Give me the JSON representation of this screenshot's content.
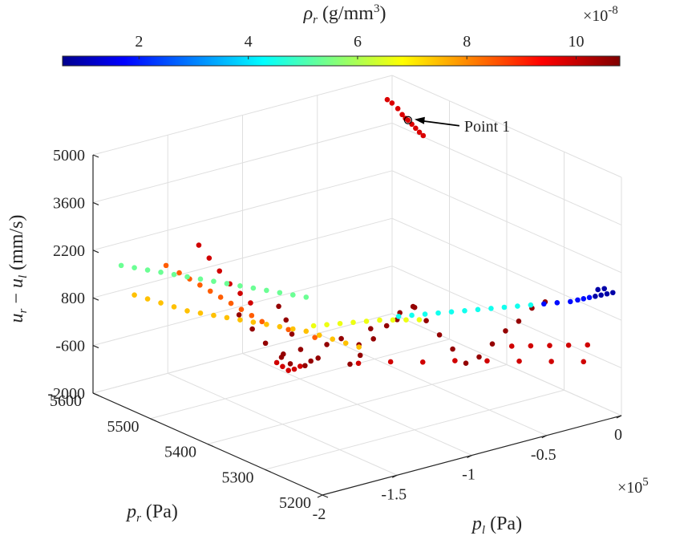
{
  "chart_data": {
    "type": "scatter",
    "subtype": "3d-scatter",
    "colormap": "jet",
    "grid": true,
    "axes": {
      "x": {
        "label": "p_l (Pa)",
        "lim": [
          -2,
          0
        ],
        "ticks": [
          "-2",
          "-1.5",
          "-1",
          "-0.5",
          "0"
        ],
        "exponent": "×10^5"
      },
      "y": {
        "label": "p_r (Pa)",
        "lim": [
          5200,
          5600
        ],
        "ticks": [
          "5200",
          "5300",
          "5400",
          "5500",
          "5600"
        ]
      },
      "z": {
        "label": "u_r − u_l (mm/s)",
        "lim": [
          -2000,
          5000
        ],
        "ticks": [
          "-2000",
          "-600",
          "800",
          "2200",
          "3600",
          "5000"
        ]
      }
    },
    "colorbar": {
      "label": "ρ_r (g/mm³)",
      "location": "top",
      "ticks": [
        "2",
        "4",
        "6",
        "8",
        "10"
      ],
      "exponent": "×10^-8",
      "range": [
        0.6,
        10.8
      ]
    },
    "annotation": {
      "text": "Point 1",
      "point": [
        0.03,
        5580,
        3800
      ]
    },
    "series": [
      {
        "rho": 10.6,
        "points": [
          [
            -0.85,
            5520,
            -1800
          ],
          [
            -0.88,
            5530,
            -1500
          ],
          [
            -0.9,
            5540,
            -1100
          ],
          [
            -0.92,
            5545,
            -700
          ],
          [
            -0.95,
            5550,
            -300
          ],
          [
            -0.82,
            5500,
            -1200
          ],
          [
            -0.8,
            5480,
            -900
          ],
          [
            -0.78,
            5470,
            -1600
          ],
          [
            -0.75,
            5460,
            -1300
          ],
          [
            -0.7,
            5450,
            -800
          ],
          [
            -0.65,
            5440,
            -400
          ],
          [
            -0.6,
            5430,
            0
          ],
          [
            -0.55,
            5420,
            200
          ],
          [
            -0.5,
            5410,
            -200
          ],
          [
            -0.45,
            5400,
            -600
          ],
          [
            -0.4,
            5390,
            -1000
          ],
          [
            -0.35,
            5380,
            -1400
          ],
          [
            -0.3,
            5370,
            -1200
          ],
          [
            -0.25,
            5360,
            -800
          ],
          [
            -0.2,
            5350,
            -400
          ],
          [
            -0.15,
            5340,
            -100
          ],
          [
            -0.1,
            5330,
            300
          ],
          [
            -0.05,
            5320,
            500
          ],
          [
            -1.0,
            5560,
            -1400
          ],
          [
            -1.05,
            5570,
            -1000
          ],
          [
            -1.1,
            5580,
            -600
          ],
          [
            -0.97,
            5540,
            -1700
          ],
          [
            -0.93,
            5535,
            -1900
          ],
          [
            -0.87,
            5525,
            -1950
          ],
          [
            -0.9,
            5555,
            -1800
          ],
          [
            -0.84,
            5510,
            -1650
          ],
          [
            -0.72,
            5470,
            -1100
          ],
          [
            -0.68,
            5460,
            -600
          ],
          [
            -0.58,
            5440,
            -300
          ],
          [
            -0.52,
            5425,
            100
          ]
        ]
      },
      {
        "rho": 10.0,
        "points": [
          [
            -1.0,
            5520,
            -1900
          ],
          [
            -1.02,
            5525,
            -1800
          ],
          [
            -1.04,
            5530,
            -1700
          ],
          [
            -0.98,
            5515,
            -1850
          ],
          [
            -0.96,
            5510,
            -1750
          ],
          [
            -0.8,
            5450,
            -1400
          ],
          [
            -0.7,
            5420,
            -1250
          ],
          [
            -0.6,
            5390,
            -1150
          ],
          [
            -0.5,
            5360,
            -1000
          ],
          [
            -0.4,
            5330,
            -900
          ],
          [
            -0.3,
            5300,
            -800
          ],
          [
            -0.2,
            5270,
            -700
          ],
          [
            -0.1,
            5240,
            -600
          ],
          [
            -1.2,
            5570,
            500
          ],
          [
            -1.25,
            5575,
            900
          ],
          [
            -1.3,
            5580,
            1300
          ],
          [
            -1.35,
            5585,
            1700
          ],
          [
            -1.15,
            5565,
            200
          ],
          [
            -1.1,
            5560,
            -100
          ],
          [
            -0.35,
            5300,
            -300
          ],
          [
            -0.3,
            5280,
            -200
          ],
          [
            -0.25,
            5260,
            -100
          ],
          [
            -0.2,
            5240,
            0
          ],
          [
            -0.15,
            5220,
            100
          ]
        ]
      },
      {
        "rho": 9.9,
        "points": [
          [
            0.0,
            5590,
            4100
          ],
          [
            0.01,
            5585,
            3950
          ],
          [
            0.02,
            5582,
            3850
          ],
          [
            0.03,
            5580,
            3800
          ],
          [
            0.04,
            5576,
            3700
          ],
          [
            0.05,
            5572,
            3600
          ],
          [
            0.06,
            5568,
            3500
          ],
          [
            0.07,
            5564,
            3420
          ],
          [
            -0.02,
            5595,
            4250
          ],
          [
            -0.04,
            5598,
            4350
          ]
        ]
      },
      {
        "rho": 8.6,
        "points": [
          [
            -1.3,
            5560,
            300
          ],
          [
            -1.35,
            5565,
            500
          ],
          [
            -1.4,
            5570,
            700
          ],
          [
            -1.45,
            5575,
            900
          ],
          [
            -1.25,
            5555,
            100
          ],
          [
            -1.2,
            5550,
            -100
          ],
          [
            -1.15,
            5545,
            -300
          ],
          [
            -1.1,
            5540,
            -500
          ],
          [
            -1.0,
            5520,
            -700
          ],
          [
            -0.9,
            5500,
            -900
          ],
          [
            -1.5,
            5580,
            1100
          ],
          [
            -1.55,
            5590,
            1300
          ]
        ]
      },
      {
        "rho": 7.6,
        "points": [
          [
            -1.6,
            5540,
            400
          ],
          [
            -1.55,
            5530,
            350
          ],
          [
            -1.5,
            5520,
            300
          ],
          [
            -1.45,
            5510,
            250
          ],
          [
            -1.4,
            5500,
            200
          ],
          [
            -1.35,
            5490,
            150
          ],
          [
            -1.3,
            5480,
            100
          ],
          [
            -1.25,
            5470,
            50
          ],
          [
            -1.2,
            5460,
            0
          ],
          [
            -1.15,
            5450,
            -50
          ],
          [
            -1.65,
            5550,
            500
          ],
          [
            -1.7,
            5560,
            600
          ],
          [
            -1.75,
            5570,
            700
          ],
          [
            -1.8,
            5580,
            800
          ],
          [
            -1.1,
            5440,
            -150
          ],
          [
            -1.05,
            5430,
            -250
          ],
          [
            -1.0,
            5420,
            -350
          ],
          [
            -0.95,
            5410,
            -450
          ]
        ]
      },
      {
        "rho": 6.8,
        "points": [
          [
            -1.0,
            5430,
            150
          ],
          [
            -0.95,
            5420,
            200
          ],
          [
            -0.9,
            5410,
            250
          ],
          [
            -0.85,
            5400,
            300
          ],
          [
            -0.8,
            5390,
            320
          ],
          [
            -0.75,
            5380,
            340
          ],
          [
            -1.05,
            5440,
            100
          ],
          [
            -1.1,
            5450,
            50
          ],
          [
            -0.7,
            5370,
            360
          ]
        ]
      },
      {
        "rho": 5.5,
        "points": [
          [
            -1.7,
            5560,
            1500
          ],
          [
            -1.65,
            5550,
            1450
          ],
          [
            -1.6,
            5540,
            1400
          ],
          [
            -1.55,
            5530,
            1350
          ],
          [
            -1.5,
            5520,
            1300
          ],
          [
            -1.45,
            5510,
            1250
          ],
          [
            -1.4,
            5500,
            1200
          ],
          [
            -1.35,
            5490,
            1150
          ],
          [
            -1.3,
            5480,
            1100
          ],
          [
            -1.25,
            5470,
            1050
          ],
          [
            -1.2,
            5460,
            1000
          ],
          [
            -1.15,
            5450,
            950
          ],
          [
            -1.75,
            5570,
            1550
          ],
          [
            -1.8,
            5580,
            1600
          ],
          [
            -1.85,
            5590,
            1650
          ]
        ]
      },
      {
        "rho": 4.6,
        "points": [
          [
            -0.7,
            5360,
            600
          ],
          [
            -0.65,
            5350,
            650
          ],
          [
            -0.6,
            5340,
            700
          ],
          [
            -0.55,
            5330,
            750
          ],
          [
            -0.5,
            5320,
            800
          ],
          [
            -0.45,
            5310,
            850
          ],
          [
            -0.4,
            5300,
            900
          ],
          [
            -0.35,
            5290,
            950
          ],
          [
            -0.3,
            5280,
            1000
          ],
          [
            -0.75,
            5370,
            550
          ],
          [
            -0.8,
            5380,
            500
          ]
        ]
      },
      {
        "rho": 2.0,
        "points": [
          [
            -0.25,
            5270,
            1050
          ],
          [
            -0.2,
            5260,
            1100
          ],
          [
            -0.15,
            5250,
            1150
          ],
          [
            -0.12,
            5245,
            1200
          ],
          [
            -0.1,
            5240,
            1250
          ],
          [
            -0.08,
            5235,
            1300
          ]
        ]
      },
      {
        "rho": 1.0,
        "points": [
          [
            -0.06,
            5230,
            1350
          ],
          [
            -0.04,
            5225,
            1400
          ],
          [
            -0.02,
            5220,
            1450
          ],
          [
            0.0,
            5215,
            1500
          ],
          [
            -0.05,
            5228,
            1550
          ],
          [
            -0.03,
            5222,
            1600
          ]
        ]
      }
    ]
  }
}
